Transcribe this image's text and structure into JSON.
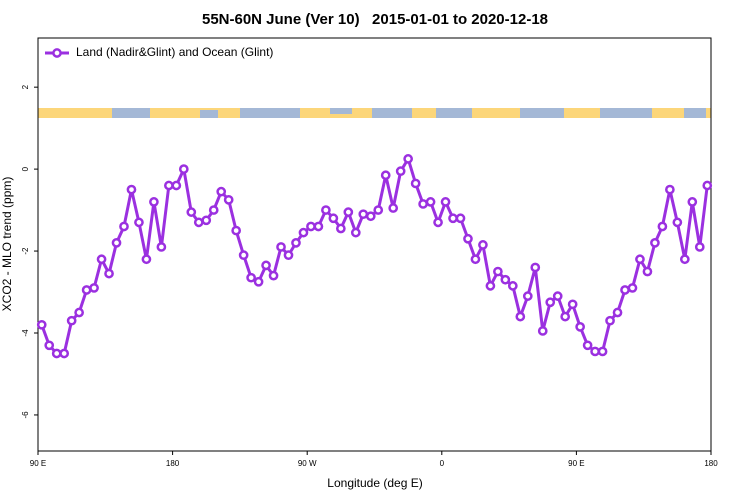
{
  "chart_data": {
    "type": "line",
    "title": "55N-60N June (Ver 10)   2015-01-01 to 2020-12-18",
    "x_label": "Longitude (deg E)",
    "y_label": "XCO2 - MLO trend (ppm)",
    "xlim": [
      90,
      540
    ],
    "xticks": [
      {
        "value": 90,
        "label": "90 E"
      },
      180,
      {
        "value": 270,
        "label": "90 W"
      },
      {
        "value": 360,
        "label": "0"
      },
      {
        "value": 450,
        "label": "90 E"
      },
      {
        "value": 540,
        "label": "180"
      }
    ],
    "ylim": [
      -6.88,
      3.2
    ],
    "yticks": [
      -6,
      -4,
      -2,
      0,
      2
    ],
    "legend": "top-left",
    "x": [
      92.5,
      97.5,
      102.5,
      107.5,
      112.5,
      117.5,
      122.5,
      127.5,
      132.5,
      137.5,
      142.5,
      147.5,
      152.5,
      157.5,
      162.5,
      167.5,
      172.5,
      177.5,
      182.5,
      187.5,
      192.5,
      197.5,
      202.5,
      207.5,
      212.5,
      217.5,
      222.5,
      227.5,
      232.5,
      237.5,
      242.5,
      247.5,
      252.5,
      257.5,
      262.5,
      267.5,
      272.5,
      277.5,
      282.5,
      287.5,
      292.5,
      297.5,
      302.5,
      307.5,
      312.5,
      317.5,
      322.5,
      327.5,
      332.5,
      337.5,
      342.5,
      347.5,
      352.5,
      357.5,
      362.5,
      367.5,
      372.5,
      377.5,
      382.5,
      387.5,
      392.5,
      397.5,
      402.5,
      407.5,
      412.5,
      417.5,
      422.5,
      427.5,
      432.5,
      437.5,
      442.5,
      447.5,
      452.5,
      457.5,
      462.5,
      467.5,
      472.5,
      477.5,
      482.5,
      487.5,
      492.5,
      497.5,
      502.5,
      507.5,
      512.5,
      517.5,
      522.5,
      527.5,
      532.5,
      537.5
    ],
    "series": [
      {
        "name": "Land (Nadir&Glint) and Ocean (Glint)",
        "color": "#9b30e0",
        "values": [
          -3.8,
          -4.3,
          -4.5,
          -4.5,
          -3.7,
          -3.5,
          -2.95,
          -2.9,
          -2.2,
          -2.55,
          -1.8,
          -1.4,
          -0.5,
          -1.3,
          -2.2,
          -0.8,
          -1.9,
          -0.4,
          -0.4,
          0,
          -1.05,
          -1.3,
          -1.25,
          -1.0,
          -0.55,
          -0.75,
          -1.5,
          -2.1,
          -2.65,
          -2.75,
          -2.35,
          -2.6,
          -1.9,
          -2.1,
          -1.8,
          -1.55,
          -1.4,
          -1.4,
          -1.0,
          -1.2,
          -1.45,
          -1.05,
          -1.55,
          -1.1,
          -1.15,
          -1.0,
          -0.15,
          -0.95,
          -0.05,
          0.25,
          -0.35,
          -0.85,
          -0.8,
          -1.3,
          -0.8,
          -1.2,
          -1.2,
          -1.7,
          -2.2,
          -1.85,
          -2.85,
          -2.5,
          -2.7,
          -2.85,
          -3.6,
          -3.1,
          -2.4,
          -3.95,
          -3.25,
          -3.1,
          -3.6,
          -3.3,
          -3.85,
          -4.3,
          -4.45,
          -4.45,
          -3.7,
          -3.5,
          -2.95,
          -2.9,
          -2.2,
          -2.5,
          -1.8,
          -1.4,
          -0.5,
          -1.3,
          -2.2,
          -0.8,
          -1.9,
          -0.4
        ]
      }
    ]
  }
}
